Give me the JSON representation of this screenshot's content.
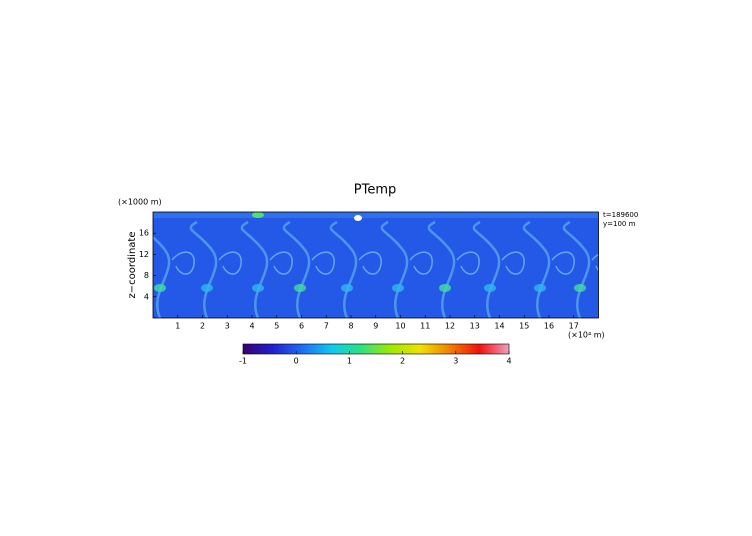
{
  "chart_data": {
    "type": "heatmap",
    "title": "PTemp",
    "x_label": "(×10⁴ m)",
    "y_label": "z−coordinate",
    "y_unit": "(×1000 m)",
    "annotations": [
      "t=189600",
      "y=100 m"
    ],
    "xlim": [
      0,
      18
    ],
    "xticks": [
      1,
      2,
      3,
      4,
      5,
      6,
      7,
      8,
      9,
      10,
      11,
      12,
      13,
      14,
      15,
      16,
      17
    ],
    "ylim": [
      0,
      20
    ],
    "yticks": [
      4,
      8,
      12,
      16
    ],
    "colorbar": {
      "lim": [
        -1,
        4
      ],
      "ticks": [
        -1,
        0,
        1,
        2,
        3,
        4
      ],
      "colormap": [
        "#3a0070",
        "#2020d0",
        "#1f6ef0",
        "#10c8f0",
        "#30e080",
        "#a0e800",
        "#f0e000",
        "#f08000",
        "#f01010",
        "#f0a0c0"
      ]
    }
  }
}
